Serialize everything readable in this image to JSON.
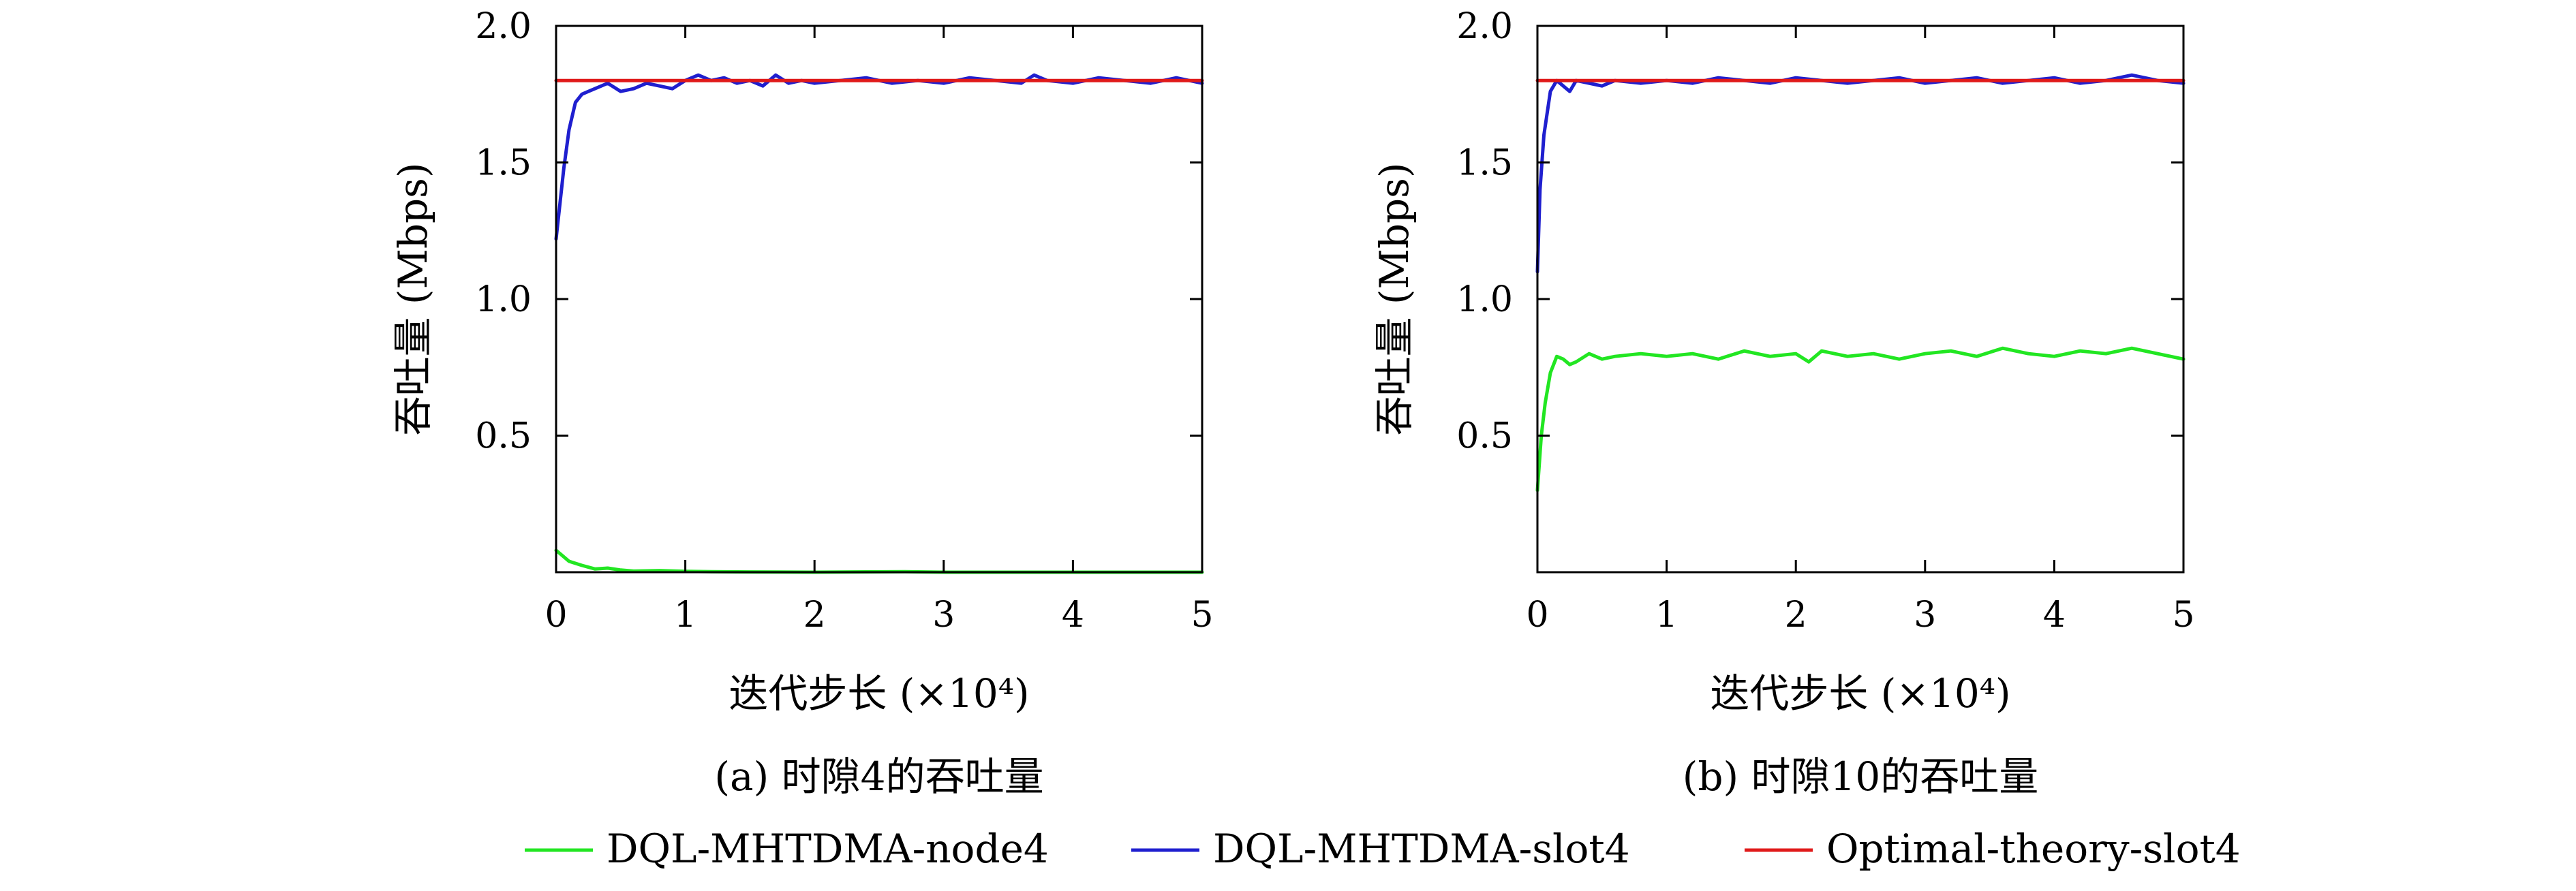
{
  "colors": {
    "node": "#22e622",
    "slot": "#1f1fcf",
    "optimal": "#e01a1a",
    "axis": "#000000"
  },
  "legend": [
    {
      "label": "DQL-MHTDMA-node4",
      "color": "#22e622"
    },
    {
      "label": "DQL-MHTDMA-slot4",
      "color": "#1f1fcf"
    },
    {
      "label": "Optimal-theory-slot4",
      "color": "#e01a1a"
    }
  ],
  "chart_data": [
    {
      "type": "line",
      "caption": "(a) 时隙4的吞吐量",
      "xlabel": "迭代步长 (×10⁴)",
      "ylabel": "吞吐量 (Mbps)",
      "xlim": [
        0,
        5
      ],
      "ylim": [
        0,
        2.0
      ],
      "xticks": [
        "0",
        "1",
        "2",
        "3",
        "4",
        "5"
      ],
      "yticks": [
        "0.5",
        "1.0",
        "1.5",
        "2.0"
      ],
      "grid": false,
      "series": [
        {
          "name": "DQL-MHTDMA-node4",
          "color": "#22e622",
          "x": [
            0,
            0.05,
            0.1,
            0.2,
            0.3,
            0.4,
            0.5,
            0.6,
            0.8,
            1.0,
            1.2,
            1.5,
            2.0,
            2.7,
            3.0,
            5.0
          ],
          "y": [
            0.08,
            0.06,
            0.04,
            0.025,
            0.012,
            0.015,
            0.008,
            0.004,
            0.006,
            0.003,
            0.002,
            0.001,
            0.0,
            0.002,
            0.0,
            0.0
          ]
        },
        {
          "name": "DQL-MHTDMA-slot4",
          "color": "#1f1fcf",
          "x": [
            0,
            0.03,
            0.06,
            0.1,
            0.15,
            0.2,
            0.25,
            0.3,
            0.4,
            0.5,
            0.6,
            0.7,
            0.8,
            0.9,
            1.0,
            1.1,
            1.2,
            1.3,
            1.4,
            1.5,
            1.6,
            1.7,
            1.8,
            1.9,
            2.0,
            2.2,
            2.4,
            2.6,
            2.8,
            3.0,
            3.2,
            3.4,
            3.6,
            3.7,
            3.8,
            4.0,
            4.2,
            4.4,
            4.6,
            4.8,
            5.0
          ],
          "y": [
            1.22,
            1.35,
            1.48,
            1.62,
            1.72,
            1.75,
            1.76,
            1.77,
            1.79,
            1.76,
            1.77,
            1.79,
            1.78,
            1.77,
            1.8,
            1.82,
            1.8,
            1.81,
            1.79,
            1.8,
            1.78,
            1.82,
            1.79,
            1.8,
            1.79,
            1.8,
            1.81,
            1.79,
            1.8,
            1.79,
            1.81,
            1.8,
            1.79,
            1.82,
            1.8,
            1.79,
            1.81,
            1.8,
            1.79,
            1.81,
            1.79
          ]
        },
        {
          "name": "Optimal-theory-slot4",
          "color": "#e01a1a",
          "x": [
            0,
            5
          ],
          "y": [
            1.8,
            1.8
          ]
        }
      ]
    },
    {
      "type": "line",
      "caption": "(b) 时隙10的吞吐量",
      "xlabel": "迭代步长 (×10⁴)",
      "ylabel": "吞吐量 (Mbps)",
      "xlim": [
        0,
        5
      ],
      "ylim": [
        0,
        2.0
      ],
      "xticks": [
        "0",
        "1",
        "2",
        "3",
        "4",
        "5"
      ],
      "yticks": [
        "0.5",
        "1.0",
        "1.5",
        "2.0"
      ],
      "grid": false,
      "series": [
        {
          "name": "DQL-MHTDMA-node4",
          "color": "#22e622",
          "x": [
            0,
            0.03,
            0.06,
            0.1,
            0.15,
            0.2,
            0.25,
            0.3,
            0.4,
            0.5,
            0.6,
            0.8,
            1.0,
            1.2,
            1.4,
            1.6,
            1.8,
            2.0,
            2.1,
            2.2,
            2.4,
            2.6,
            2.8,
            3.0,
            3.2,
            3.4,
            3.6,
            3.8,
            4.0,
            4.2,
            4.4,
            4.6,
            4.8,
            5.0
          ],
          "y": [
            0.3,
            0.5,
            0.62,
            0.73,
            0.79,
            0.78,
            0.76,
            0.77,
            0.8,
            0.78,
            0.79,
            0.8,
            0.79,
            0.8,
            0.78,
            0.81,
            0.79,
            0.8,
            0.77,
            0.81,
            0.79,
            0.8,
            0.78,
            0.8,
            0.81,
            0.79,
            0.82,
            0.8,
            0.79,
            0.81,
            0.8,
            0.82,
            0.8,
            0.78
          ]
        },
        {
          "name": "DQL-MHTDMA-slot4",
          "color": "#1f1fcf",
          "x": [
            0,
            0.02,
            0.05,
            0.1,
            0.15,
            0.2,
            0.25,
            0.3,
            0.4,
            0.5,
            0.6,
            0.8,
            1.0,
            1.2,
            1.4,
            1.6,
            1.8,
            2.0,
            2.2,
            2.4,
            2.6,
            2.8,
            3.0,
            3.2,
            3.4,
            3.6,
            3.8,
            4.0,
            4.2,
            4.4,
            4.6,
            4.8,
            5.0
          ],
          "y": [
            1.1,
            1.4,
            1.6,
            1.76,
            1.8,
            1.78,
            1.76,
            1.8,
            1.79,
            1.78,
            1.8,
            1.79,
            1.8,
            1.79,
            1.81,
            1.8,
            1.79,
            1.81,
            1.8,
            1.79,
            1.8,
            1.81,
            1.79,
            1.8,
            1.81,
            1.79,
            1.8,
            1.81,
            1.79,
            1.8,
            1.82,
            1.8,
            1.79
          ]
        },
        {
          "name": "Optimal-theory-slot4",
          "color": "#e01a1a",
          "x": [
            0,
            5
          ],
          "y": [
            1.8,
            1.8
          ]
        }
      ]
    }
  ]
}
